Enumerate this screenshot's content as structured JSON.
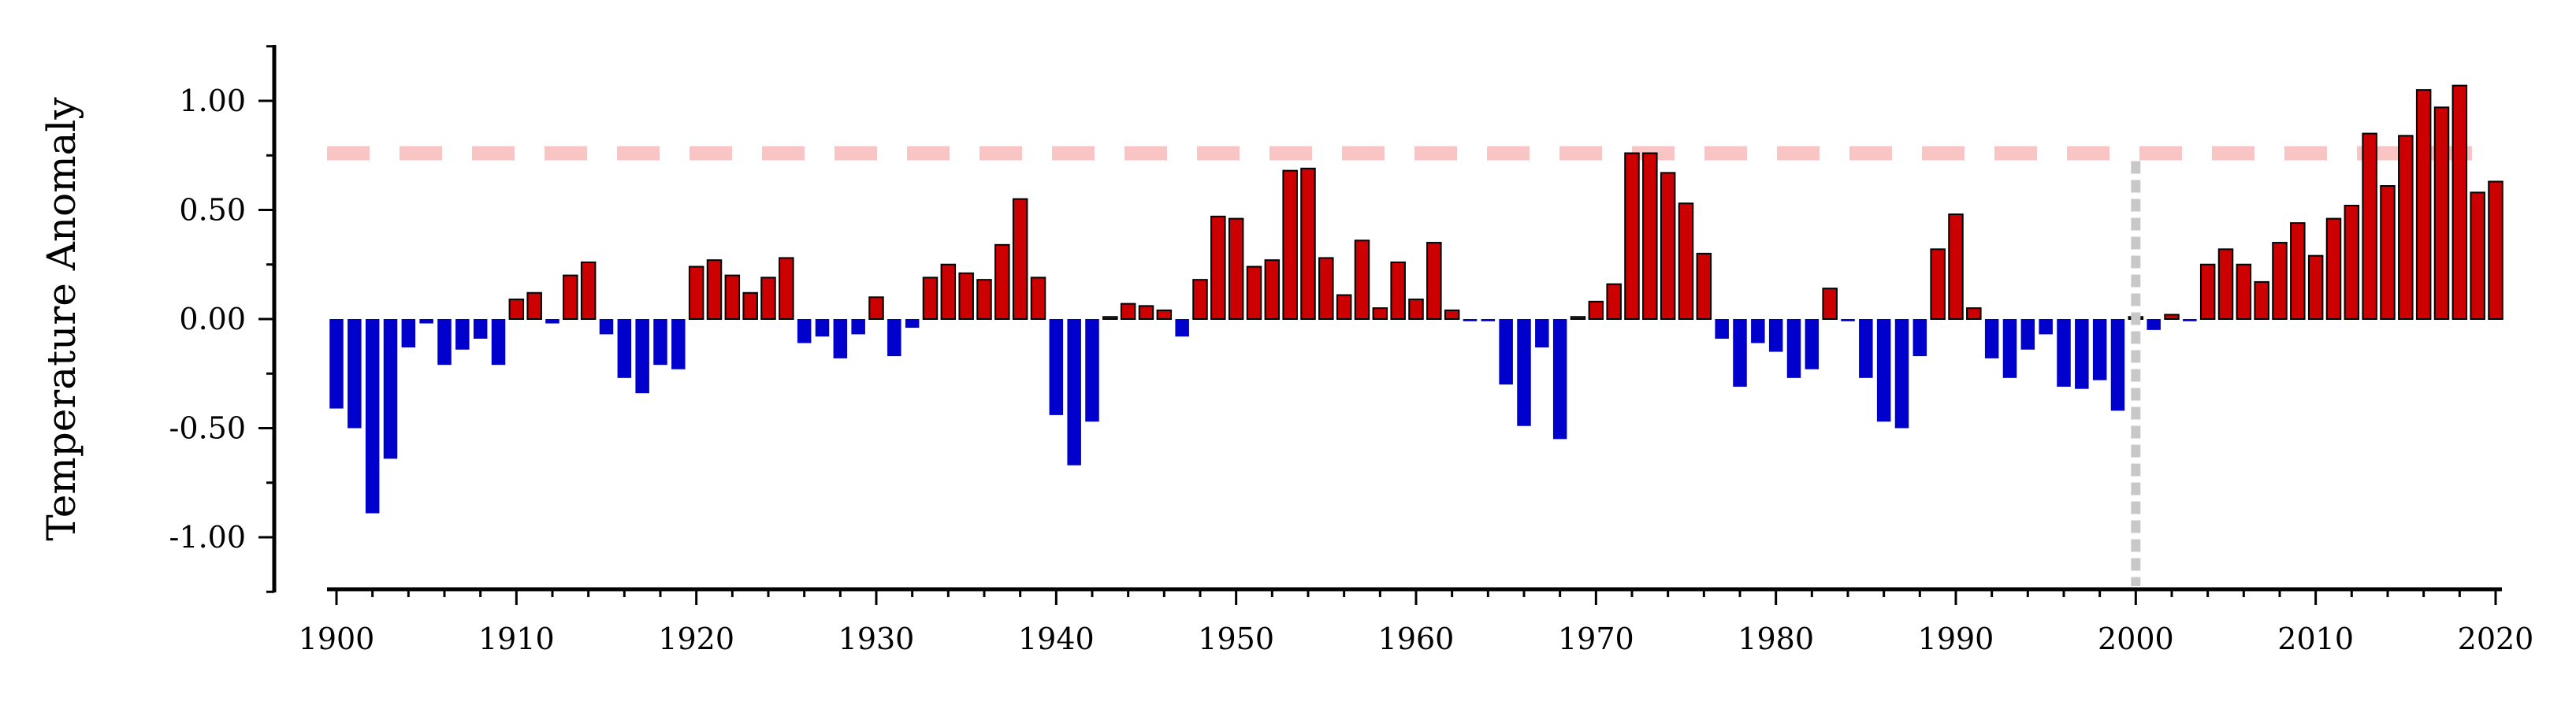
{
  "chart_data": {
    "type": "bar",
    "title": "",
    "xlabel": "",
    "ylabel": "Temperature Anomaly",
    "xlim": [
      1899.5,
      2020.5
    ],
    "ylim": [
      -1.25,
      1.25
    ],
    "x_ticks": [
      1900,
      1910,
      1920,
      1930,
      1940,
      1950,
      1960,
      1970,
      1980,
      1990,
      2000,
      2010,
      2020
    ],
    "y_ticks": [
      1.0,
      0.5,
      0.0,
      -0.5,
      -1.0
    ],
    "y_tick_labels": [
      "1.00",
      "0.50",
      "0.00",
      "-0.50",
      "-1.00"
    ],
    "grid": false,
    "colors": {
      "positive": "#cc0000",
      "negative": "#0000cc",
      "bar_edge": "#000000",
      "threshold_line": "#f8c4c4",
      "reference_line": "#c8c8c8"
    },
    "threshold_y": 0.76,
    "reference_x": 2000,
    "years": [
      1900,
      1901,
      1902,
      1903,
      1904,
      1905,
      1906,
      1907,
      1908,
      1909,
      1910,
      1911,
      1912,
      1913,
      1914,
      1915,
      1916,
      1917,
      1918,
      1919,
      1920,
      1921,
      1922,
      1923,
      1924,
      1925,
      1926,
      1927,
      1928,
      1929,
      1930,
      1931,
      1932,
      1933,
      1934,
      1935,
      1936,
      1937,
      1938,
      1939,
      1940,
      1941,
      1942,
      1943,
      1944,
      1945,
      1946,
      1947,
      1948,
      1949,
      1950,
      1951,
      1952,
      1953,
      1954,
      1955,
      1956,
      1957,
      1958,
      1959,
      1960,
      1961,
      1962,
      1963,
      1964,
      1965,
      1966,
      1967,
      1968,
      1969,
      1970,
      1971,
      1972,
      1973,
      1974,
      1975,
      1976,
      1977,
      1978,
      1979,
      1980,
      1981,
      1982,
      1983,
      1984,
      1985,
      1986,
      1987,
      1988,
      1989,
      1990,
      1991,
      1992,
      1993,
      1994,
      1995,
      1996,
      1997,
      1998,
      1999,
      2000,
      2001,
      2002,
      2003,
      2004,
      2005,
      2006,
      2007,
      2008,
      2009,
      2010,
      2011,
      2012,
      2013,
      2014,
      2015,
      2016,
      2017,
      2018,
      2019,
      2020
    ],
    "values": [
      -0.41,
      -0.5,
      -0.89,
      -0.64,
      -0.13,
      -0.02,
      -0.21,
      -0.14,
      -0.09,
      -0.21,
      0.09,
      0.12,
      -0.02,
      0.2,
      0.26,
      -0.07,
      -0.27,
      -0.34,
      -0.21,
      -0.23,
      0.24,
      0.27,
      0.2,
      0.12,
      0.19,
      0.28,
      -0.11,
      -0.08,
      -0.18,
      -0.07,
      0.1,
      -0.17,
      -0.04,
      0.19,
      0.25,
      0.21,
      0.18,
      0.34,
      0.55,
      0.19,
      -0.44,
      -0.67,
      -0.47,
      0.01,
      0.07,
      0.06,
      0.04,
      -0.08,
      0.18,
      0.47,
      0.46,
      0.24,
      0.27,
      0.68,
      0.69,
      0.28,
      0.11,
      0.36,
      0.05,
      0.26,
      0.09,
      0.35,
      0.04,
      -0.01,
      -0.01,
      -0.3,
      -0.49,
      -0.13,
      -0.55,
      0.01,
      0.08,
      0.16,
      0.76,
      0.76,
      0.67,
      0.53,
      0.3,
      -0.09,
      -0.31,
      -0.11,
      -0.15,
      -0.27,
      -0.23,
      0.14,
      -0.01,
      -0.27,
      -0.47,
      -0.5,
      -0.17,
      0.32,
      0.48,
      0.05,
      -0.18,
      -0.27,
      -0.14,
      -0.07,
      -0.31,
      -0.32,
      -0.28,
      -0.42,
      0.01,
      -0.05,
      0.02,
      -0.01,
      0.25,
      0.32,
      0.25,
      0.17,
      0.35,
      0.44,
      0.29,
      0.46,
      0.52,
      0.85,
      0.61,
      0.84,
      1.05,
      0.97,
      1.07,
      0.58,
      0.63
    ]
  }
}
